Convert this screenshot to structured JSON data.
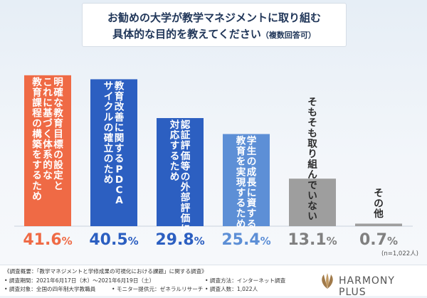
{
  "chart_data": {
    "type": "bar",
    "title_line1": "お勧めの大学が教学マネジメントに取り組む",
    "title_line2": "具体的な目的を教えてください",
    "title_note": "（複数回答可）",
    "categories": [
      "明確な教育目標の設定と これに基づく体系的な 教育課程の構築をするため",
      "教育改善に関するPDCA サイクルの確立のため",
      "認証評価等の外部評価に 対応するため",
      "学生の成長に資する 教育を実現するため",
      "そもそも取り組んでいない",
      "その他"
    ],
    "category_lines": [
      [
        "明確な教育目標の設定と",
        "これに基づく体系的な",
        "教育課程の構築をするため"
      ],
      [
        "教育改善に関するPDCA",
        "サイクルの確立のため"
      ],
      [
        "認証評価等の外部評価に",
        "対応するため"
      ],
      [
        "学生の成長に資する",
        "教育を実現するため"
      ],
      [
        "そもそも取り組んでいない"
      ],
      [
        "その他"
      ]
    ],
    "values": [
      41.6,
      40.5,
      29.8,
      25.4,
      13.1,
      0.7
    ],
    "value_labels": [
      {
        "int": "41.",
        "dec": "6",
        "unit": "%"
      },
      {
        "int": "40.",
        "dec": "5",
        "unit": "%"
      },
      {
        "int": "29.",
        "dec": "8",
        "unit": "%"
      },
      {
        "int": "25.",
        "dec": "4",
        "unit": "%"
      },
      {
        "int": "13.",
        "dec": "1",
        "unit": "%"
      },
      {
        "int": "0.",
        "dec": "7",
        "unit": "%"
      }
    ],
    "colors": [
      "#ef6a45",
      "#2c5fc1",
      "#2c5fc1",
      "#5d8fd6",
      "#9e9e9e",
      "#9e9e9e"
    ],
    "label_colors": [
      "#ef6a45",
      "#2c5fc1",
      "#2c5fc1",
      "#5d8fd6",
      "#808080",
      "#808080"
    ],
    "sample_note": "(n=1,022人)",
    "ylim": [
      0,
      45
    ]
  },
  "footer": {
    "survey_overview": "《調査概要：「教学マネジメントと学修成果の可視化における課題」に関する調査》",
    "period": "• 調査期間：2021年6月17日（木）～2021年6月19日（土）",
    "method": "• 調査方法：インターネット調査",
    "target": "• 調査対象：全国の四年制大学教職員",
    "monitor": "• モニター提供元：ゼネラルリサーチ",
    "count": "• 調査人数：1,022人",
    "logo_text": "HARMONY PLUS"
  }
}
